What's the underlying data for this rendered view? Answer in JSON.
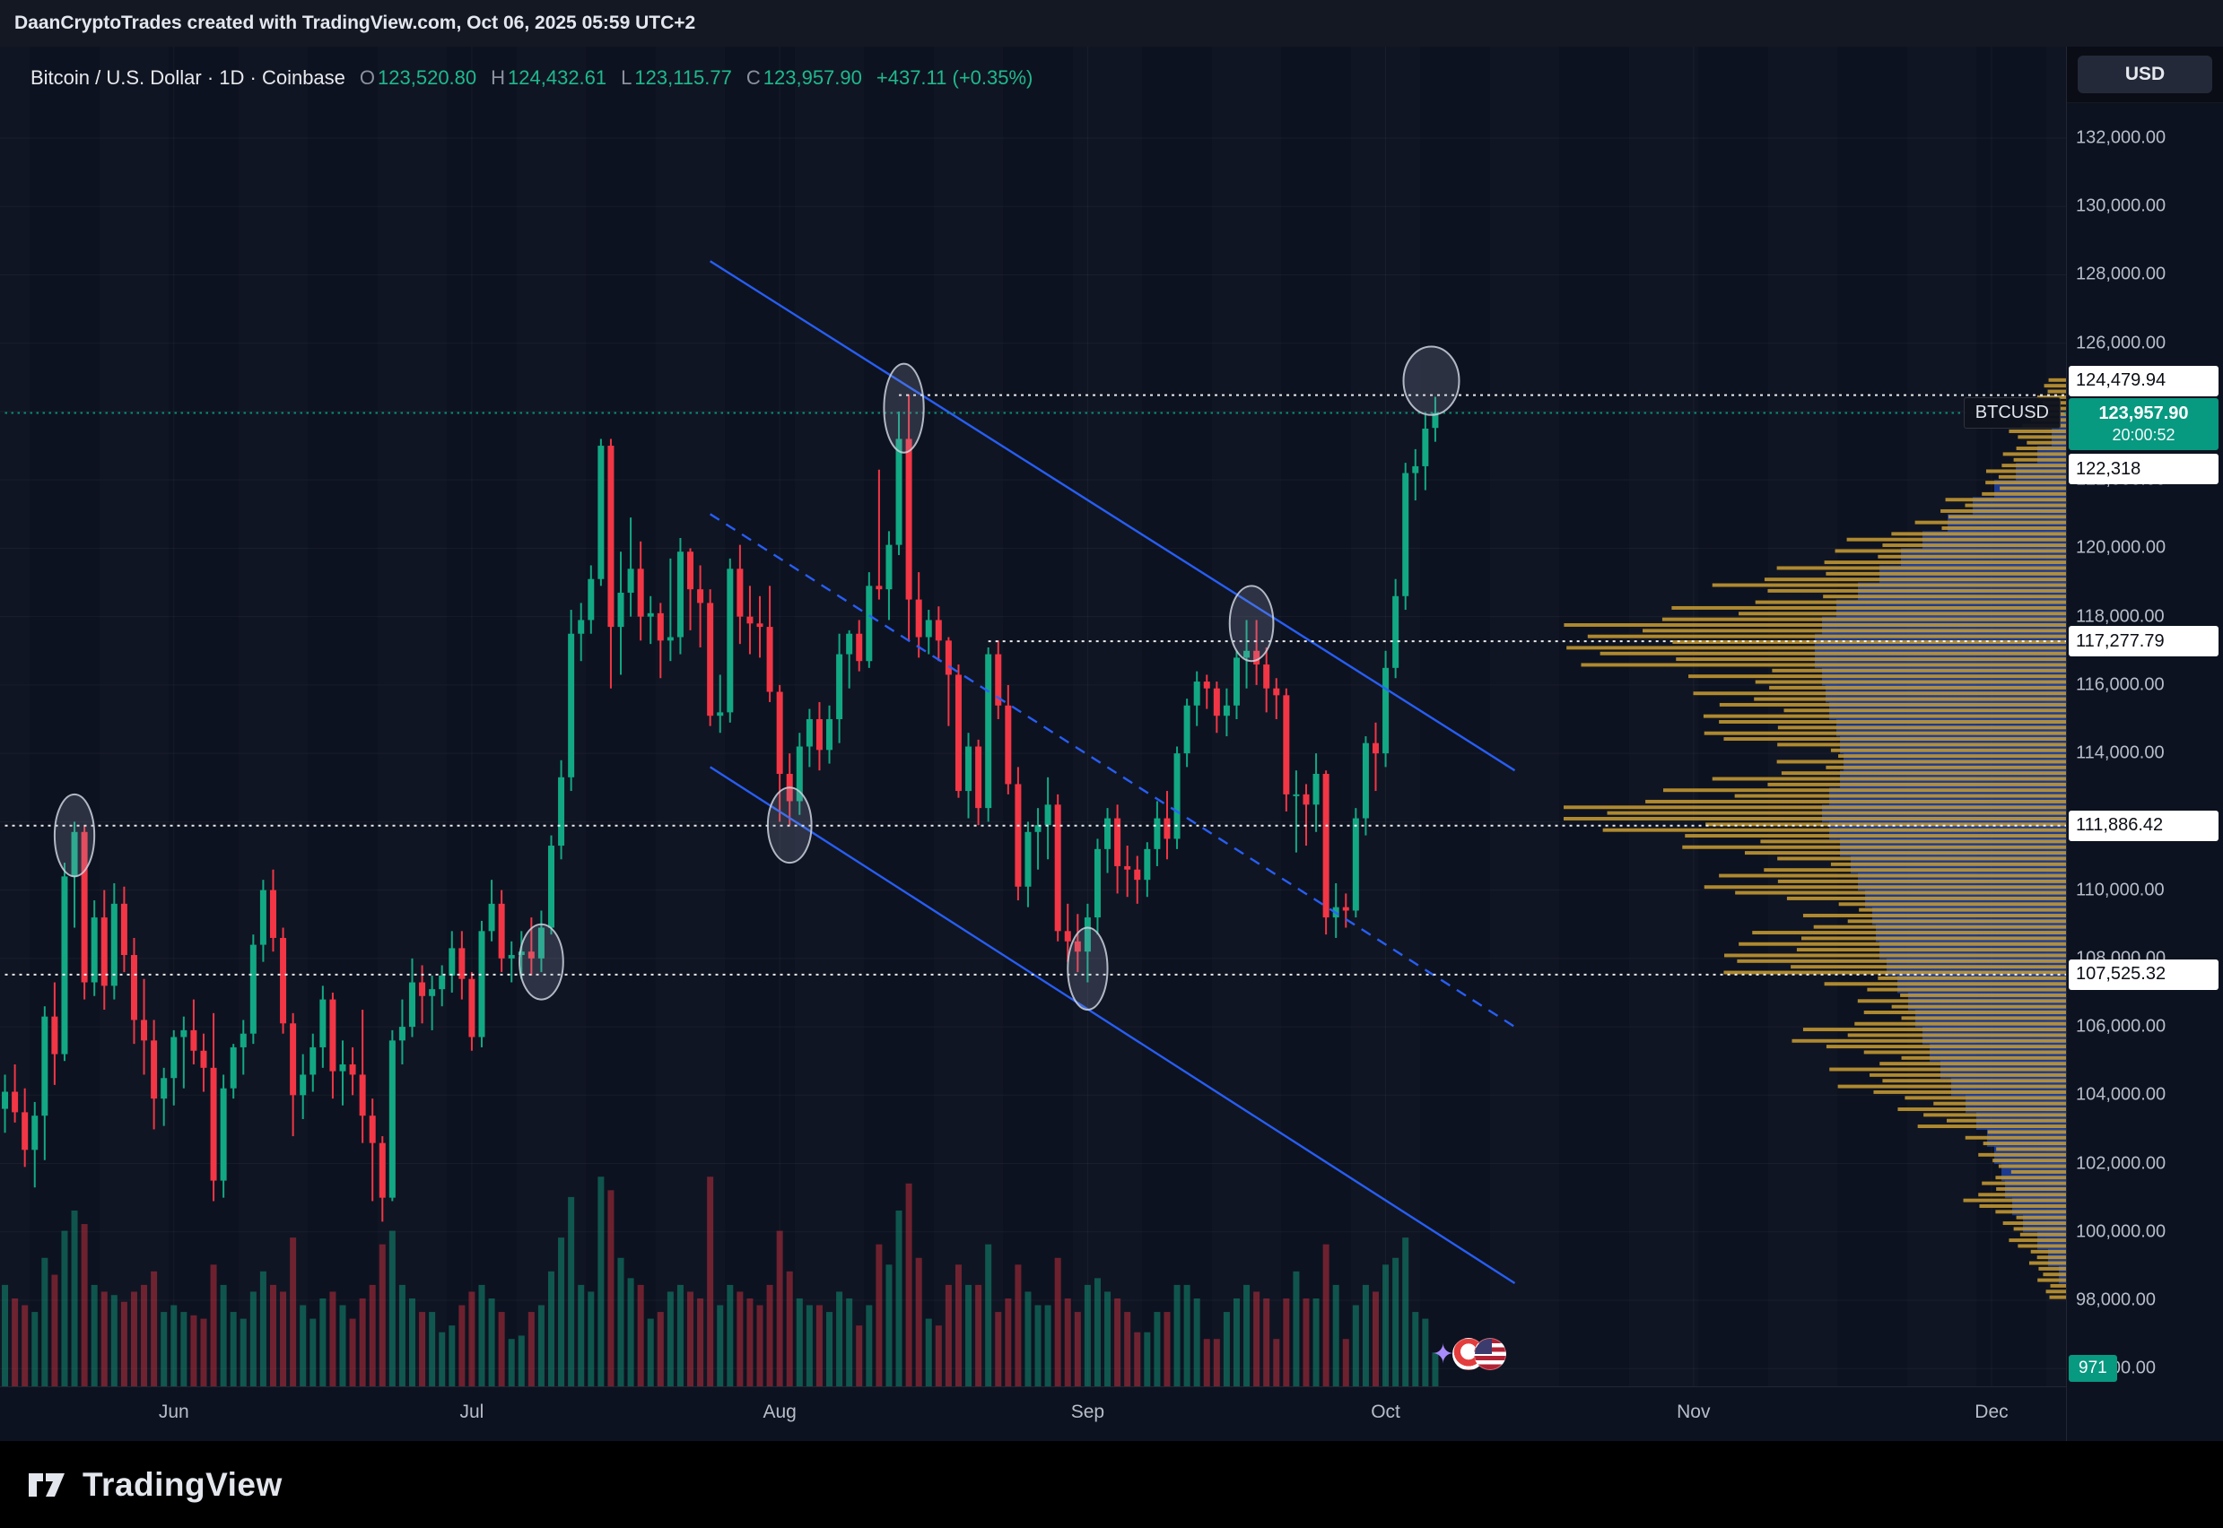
{
  "topbar": {
    "text": "DaanCryptoTrades created with TradingView.com, Oct 06, 2025 05:59 UTC+2"
  },
  "legend": {
    "title": "Bitcoin / U.S. Dollar · 1D · Coinbase",
    "ohlc": [
      {
        "label": "O",
        "value": "123,520.80"
      },
      {
        "label": "H",
        "value": "124,432.61"
      },
      {
        "label": "L",
        "value": "123,115.77"
      },
      {
        "label": "C",
        "value": "123,957.90"
      }
    ],
    "change": "+437.11 (+0.35%)"
  },
  "price_axis": {
    "currency_button": "USD",
    "volume_badge": "971",
    "current": {
      "symbol": "BTCUSD",
      "price": "123,957.90",
      "countdown": "20:00:52"
    }
  },
  "time_axis": {
    "months": [
      {
        "label": "Jun",
        "i": 17
      },
      {
        "label": "Jul",
        "i": 47
      },
      {
        "label": "Aug",
        "i": 78
      },
      {
        "label": "Sep",
        "i": 109
      },
      {
        "label": "Oct",
        "i": 139
      },
      {
        "label": "Nov",
        "i": 170
      },
      {
        "label": "Dec",
        "i": 200
      }
    ]
  },
  "footer": {
    "brand": "TradingView"
  },
  "colors": {
    "up": "#12a884",
    "down": "#f23645",
    "vol_up": "rgba(18,168,132,0.45)",
    "vol_down": "rgba(242,54,69,0.42)",
    "channel_blue": "#2962ff",
    "profile_gold": "#c59a31",
    "profile_blue": "#2962ff",
    "current_badge": "#089981",
    "white_line": "#ffffff"
  },
  "chart_data": {
    "type": "candlestick",
    "title": "Bitcoin / U.S. Dollar",
    "exchange": "Coinbase",
    "interval": "1D",
    "quote": "USD",
    "start_date": "2025-05-15",
    "end_date": "2025-10-06",
    "price_unit": "USD thousands per candle value",
    "x_slots": 208,
    "y_domain": [
      95482,
      134676
    ],
    "y_ticks": [
      96000,
      98000,
      100000,
      102000,
      104000,
      106000,
      108000,
      110000,
      112000,
      114000,
      116000,
      118000,
      120000,
      122000,
      124000,
      126000,
      128000,
      130000,
      132000
    ],
    "candles": [
      [
        103.6,
        104.6,
        102.9,
        104.1,
        0.3
      ],
      [
        104.1,
        104.9,
        103.2,
        103.5,
        0.26
      ],
      [
        103.5,
        104.2,
        101.9,
        102.4,
        0.24
      ],
      [
        102.4,
        103.8,
        101.3,
        103.4,
        0.22
      ],
      [
        103.4,
        106.6,
        102.1,
        106.3,
        0.38
      ],
      [
        106.3,
        107.3,
        104.3,
        105.2,
        0.33
      ],
      [
        105.2,
        110.8,
        105.0,
        110.4,
        0.46
      ],
      [
        110.4,
        112.0,
        108.9,
        111.7,
        0.52
      ],
      [
        111.7,
        111.9,
        106.8,
        107.3,
        0.48
      ],
      [
        107.3,
        109.7,
        106.9,
        109.2,
        0.3
      ],
      [
        109.2,
        110.0,
        106.5,
        107.2,
        0.28
      ],
      [
        107.2,
        110.2,
        106.8,
        109.6,
        0.27
      ],
      [
        109.6,
        110.1,
        107.6,
        108.1,
        0.25
      ],
      [
        108.1,
        108.6,
        105.5,
        106.2,
        0.28
      ],
      [
        106.2,
        107.4,
        104.6,
        105.6,
        0.3
      ],
      [
        105.6,
        106.2,
        103.0,
        103.9,
        0.34
      ],
      [
        103.9,
        104.8,
        103.1,
        104.5,
        0.22
      ],
      [
        104.5,
        105.9,
        103.7,
        105.7,
        0.24
      ],
      [
        105.7,
        106.3,
        104.2,
        105.9,
        0.22
      ],
      [
        105.9,
        106.8,
        104.9,
        105.3,
        0.21
      ],
      [
        105.3,
        105.8,
        104.1,
        104.8,
        0.2
      ],
      [
        104.8,
        106.4,
        100.9,
        101.5,
        0.36
      ],
      [
        101.5,
        104.6,
        101.0,
        104.2,
        0.3
      ],
      [
        104.2,
        105.5,
        103.9,
        105.4,
        0.22
      ],
      [
        105.4,
        106.2,
        104.6,
        105.8,
        0.2
      ],
      [
        105.8,
        108.7,
        105.5,
        108.4,
        0.28
      ],
      [
        108.4,
        110.3,
        107.9,
        110.0,
        0.34
      ],
      [
        110.0,
        110.6,
        108.2,
        108.6,
        0.3
      ],
      [
        108.6,
        108.9,
        105.8,
        106.1,
        0.28
      ],
      [
        106.1,
        106.4,
        102.8,
        104.0,
        0.44
      ],
      [
        104.0,
        105.2,
        103.3,
        104.6,
        0.24
      ],
      [
        104.6,
        105.8,
        104.1,
        105.4,
        0.2
      ],
      [
        105.4,
        107.2,
        104.8,
        106.8,
        0.26
      ],
      [
        106.8,
        107.0,
        103.9,
        104.7,
        0.28
      ],
      [
        104.7,
        105.6,
        103.7,
        104.9,
        0.24
      ],
      [
        104.9,
        105.4,
        104.0,
        104.6,
        0.2
      ],
      [
        104.6,
        106.5,
        102.6,
        103.4,
        0.26
      ],
      [
        103.4,
        103.9,
        100.9,
        102.6,
        0.3
      ],
      [
        102.6,
        102.8,
        100.3,
        101.0,
        0.42
      ],
      [
        101.0,
        105.9,
        100.9,
        105.6,
        0.46
      ],
      [
        105.6,
        106.8,
        104.9,
        106.0,
        0.3
      ],
      [
        106.0,
        108.0,
        105.7,
        107.3,
        0.26
      ],
      [
        107.3,
        107.8,
        106.1,
        106.9,
        0.22
      ],
      [
        106.9,
        107.5,
        105.9,
        107.1,
        0.22
      ],
      [
        107.1,
        107.8,
        106.6,
        107.5,
        0.16
      ],
      [
        107.5,
        108.8,
        107.0,
        108.3,
        0.18
      ],
      [
        108.3,
        108.8,
        106.8,
        107.4,
        0.24
      ],
      [
        107.4,
        107.6,
        105.3,
        105.7,
        0.28
      ],
      [
        105.7,
        109.1,
        105.4,
        108.8,
        0.3
      ],
      [
        108.8,
        110.3,
        108.5,
        109.6,
        0.26
      ],
      [
        109.6,
        110.0,
        107.6,
        108.0,
        0.22
      ],
      [
        108.0,
        108.5,
        107.3,
        108.1,
        0.14
      ],
      [
        108.1,
        108.8,
        107.4,
        108.2,
        0.15
      ],
      [
        108.2,
        109.2,
        107.5,
        108.0,
        0.22
      ],
      [
        108.0,
        109.4,
        107.6,
        108.9,
        0.24
      ],
      [
        108.9,
        111.6,
        108.7,
        111.3,
        0.34
      ],
      [
        111.3,
        113.8,
        110.9,
        113.3,
        0.44
      ],
      [
        113.3,
        118.2,
        112.9,
        117.5,
        0.56
      ],
      [
        117.5,
        118.4,
        116.7,
        117.9,
        0.3
      ],
      [
        117.9,
        119.5,
        117.5,
        119.1,
        0.28
      ],
      [
        119.1,
        123.2,
        118.9,
        123.0,
        0.62
      ],
      [
        123.0,
        123.2,
        115.9,
        117.7,
        0.58
      ],
      [
        117.7,
        119.9,
        116.3,
        118.7,
        0.38
      ],
      [
        118.7,
        120.9,
        118.0,
        119.4,
        0.32
      ],
      [
        119.4,
        120.2,
        117.3,
        118.0,
        0.3
      ],
      [
        118.0,
        118.6,
        117.2,
        118.1,
        0.2
      ],
      [
        118.1,
        118.4,
        116.2,
        117.3,
        0.22
      ],
      [
        117.3,
        119.7,
        116.7,
        117.4,
        0.28
      ],
      [
        117.4,
        120.3,
        116.9,
        119.9,
        0.3
      ],
      [
        119.9,
        120.0,
        117.6,
        118.8,
        0.28
      ],
      [
        118.8,
        119.5,
        117.1,
        118.4,
        0.26
      ],
      [
        118.4,
        118.8,
        114.8,
        115.1,
        0.62
      ],
      [
        115.1,
        116.3,
        114.6,
        115.2,
        0.24
      ],
      [
        115.2,
        119.7,
        114.9,
        119.4,
        0.3
      ],
      [
        119.4,
        120.1,
        117.2,
        118.0,
        0.28
      ],
      [
        118.0,
        118.9,
        116.9,
        117.8,
        0.26
      ],
      [
        117.8,
        118.6,
        116.8,
        117.7,
        0.24
      ],
      [
        117.7,
        118.9,
        115.5,
        115.8,
        0.3
      ],
      [
        115.8,
        116.0,
        112.0,
        113.4,
        0.46
      ],
      [
        113.4,
        114.0,
        111.9,
        112.6,
        0.34
      ],
      [
        112.6,
        114.6,
        112.2,
        114.2,
        0.26
      ],
      [
        114.2,
        115.3,
        113.6,
        115.0,
        0.24
      ],
      [
        115.0,
        115.5,
        113.5,
        114.1,
        0.24
      ],
      [
        114.1,
        115.4,
        113.7,
        115.0,
        0.22
      ],
      [
        115.0,
        117.5,
        114.3,
        116.9,
        0.28
      ],
      [
        116.9,
        117.6,
        115.9,
        117.5,
        0.26
      ],
      [
        117.5,
        117.9,
        116.4,
        116.7,
        0.18
      ],
      [
        116.7,
        119.3,
        116.5,
        118.9,
        0.24
      ],
      [
        118.9,
        122.3,
        118.5,
        118.8,
        0.42
      ],
      [
        118.8,
        120.5,
        117.9,
        120.1,
        0.36
      ],
      [
        120.1,
        124.0,
        119.8,
        123.2,
        0.52
      ],
      [
        123.2,
        124.5,
        117.3,
        118.5,
        0.6
      ],
      [
        118.5,
        119.3,
        116.8,
        117.4,
        0.38
      ],
      [
        117.4,
        118.2,
        116.9,
        117.9,
        0.2
      ],
      [
        117.9,
        118.3,
        116.7,
        117.3,
        0.18
      ],
      [
        117.3,
        117.4,
        114.8,
        116.3,
        0.3
      ],
      [
        116.3,
        116.6,
        112.7,
        112.9,
        0.36
      ],
      [
        112.9,
        114.6,
        112.1,
        114.2,
        0.3
      ],
      [
        114.2,
        114.4,
        111.9,
        112.4,
        0.3
      ],
      [
        112.4,
        117.1,
        112.0,
        116.9,
        0.42
      ],
      [
        116.9,
        117.3,
        115.0,
        115.4,
        0.22
      ],
      [
        115.4,
        116.0,
        112.8,
        113.1,
        0.26
      ],
      [
        113.1,
        113.6,
        109.7,
        110.1,
        0.36
      ],
      [
        110.1,
        112.0,
        109.5,
        111.7,
        0.28
      ],
      [
        111.7,
        112.4,
        110.6,
        111.9,
        0.24
      ],
      [
        111.9,
        113.3,
        110.9,
        112.5,
        0.24
      ],
      [
        112.5,
        112.8,
        108.5,
        108.8,
        0.38
      ],
      [
        108.8,
        109.6,
        107.9,
        108.5,
        0.26
      ],
      [
        108.5,
        109.3,
        107.6,
        108.2,
        0.22
      ],
      [
        108.2,
        109.6,
        107.3,
        109.2,
        0.3
      ],
      [
        109.2,
        111.5,
        108.7,
        111.2,
        0.32
      ],
      [
        111.2,
        112.4,
        110.5,
        112.1,
        0.28
      ],
      [
        112.1,
        112.5,
        109.9,
        110.7,
        0.26
      ],
      [
        110.7,
        111.3,
        109.8,
        110.6,
        0.22
      ],
      [
        110.6,
        111.0,
        109.6,
        110.3,
        0.16
      ],
      [
        110.3,
        111.4,
        109.8,
        111.2,
        0.16
      ],
      [
        111.2,
        112.6,
        110.7,
        112.1,
        0.22
      ],
      [
        112.1,
        112.9,
        110.9,
        111.5,
        0.22
      ],
      [
        111.5,
        114.2,
        111.2,
        114.0,
        0.3
      ],
      [
        114.0,
        115.6,
        113.6,
        115.4,
        0.3
      ],
      [
        115.4,
        116.4,
        114.8,
        116.1,
        0.26
      ],
      [
        116.1,
        116.3,
        115.3,
        115.9,
        0.14
      ],
      [
        115.9,
        116.1,
        114.6,
        115.1,
        0.14
      ],
      [
        115.1,
        115.9,
        114.5,
        115.4,
        0.22
      ],
      [
        115.4,
        117.0,
        115.0,
        116.8,
        0.26
      ],
      [
        116.8,
        117.9,
        115.9,
        117.0,
        0.3
      ],
      [
        117.0,
        117.9,
        116.0,
        116.6,
        0.28
      ],
      [
        116.6,
        117.1,
        115.2,
        115.9,
        0.26
      ],
      [
        115.9,
        116.2,
        115.0,
        115.7,
        0.14
      ],
      [
        115.7,
        115.9,
        112.3,
        112.8,
        0.26
      ],
      [
        112.8,
        113.5,
        111.1,
        112.8,
        0.34
      ],
      [
        112.8,
        113.1,
        111.3,
        112.5,
        0.26
      ],
      [
        112.5,
        114.0,
        111.7,
        113.4,
        0.26
      ],
      [
        113.4,
        113.5,
        108.7,
        109.2,
        0.42
      ],
      [
        109.2,
        110.2,
        108.6,
        109.5,
        0.3
      ],
      [
        109.5,
        109.9,
        108.9,
        109.4,
        0.14
      ],
      [
        109.4,
        112.4,
        109.2,
        112.1,
        0.24
      ],
      [
        112.1,
        114.5,
        111.6,
        114.3,
        0.3
      ],
      [
        114.3,
        114.9,
        112.9,
        114.0,
        0.28
      ],
      [
        114.0,
        117.0,
        113.6,
        116.5,
        0.36
      ],
      [
        116.5,
        119.1,
        116.2,
        118.6,
        0.38
      ],
      [
        118.6,
        122.5,
        118.2,
        122.2,
        0.44
      ],
      [
        122.2,
        122.9,
        121.4,
        122.4,
        0.22
      ],
      [
        122.4,
        123.9,
        121.7,
        123.5,
        0.2
      ],
      [
        123.5208,
        124.43261,
        123.11577,
        123.9579,
        0.1
      ]
    ],
    "hlines": [
      {
        "price": 124479.94,
        "from_i": 90,
        "style": "dotted",
        "color": "#ffffff",
        "label": "124,479.94",
        "current": false
      },
      {
        "price": 123957.9,
        "from_i": 0,
        "style": "dotted",
        "color": "#089981",
        "label": "123,957.90",
        "current": true
      },
      {
        "price": 117277.79,
        "from_i": 99,
        "style": "dotted",
        "color": "#ffffff",
        "label": "117,277.79",
        "current": false
      },
      {
        "price": 111886.42,
        "from_i": 0,
        "style": "dotted",
        "color": "#ffffff",
        "label": "111,886.42",
        "current": false
      },
      {
        "price": 107525.32,
        "from_i": 0,
        "style": "dotted",
        "color": "#ffffff",
        "label": "107,525.32",
        "current": false
      }
    ],
    "axis_only_labels": [
      {
        "price": 122318,
        "label": "122,318"
      }
    ],
    "channel": {
      "color": "#2962ff",
      "lines": [
        {
          "i1": 71,
          "p1": 128.4,
          "i2": 152,
          "p2": 113.5,
          "dash": false
        },
        {
          "i1": 71,
          "p1": 121.0,
          "i2": 152,
          "p2": 106.0,
          "dash": true
        },
        {
          "i1": 71,
          "p1": 113.6,
          "i2": 152,
          "p2": 98.5,
          "dash": false
        }
      ]
    },
    "ellipses": [
      {
        "i": 7,
        "p": 111.6,
        "rx_i": 2.0,
        "ry_k": 1.2
      },
      {
        "i": 54,
        "p": 107.9,
        "rx_i": 2.2,
        "ry_k": 1.1
      },
      {
        "i": 79,
        "p": 111.9,
        "rx_i": 2.2,
        "ry_k": 1.1
      },
      {
        "i": 90.5,
        "p": 124.1,
        "rx_i": 2.0,
        "ry_k": 1.3
      },
      {
        "i": 109,
        "p": 107.7,
        "rx_i": 2.0,
        "ry_k": 1.2
      },
      {
        "i": 125.5,
        "p": 117.8,
        "rx_i": 2.2,
        "ry_k": 1.1
      },
      {
        "i": 143.6,
        "p": 124.9,
        "rx_i": 2.8,
        "ry_k": 1.0
      }
    ],
    "volume_profile": {
      "price_min": 98,
      "bucket": 0.5,
      "gold": [
        0.04,
        0.05,
        0.07,
        0.1,
        0.12,
        0.18,
        0.16,
        0.14,
        0.16,
        0.2,
        0.26,
        0.32,
        0.4,
        0.45,
        0.42,
        0.5,
        0.42,
        0.38,
        0.48,
        0.6,
        0.65,
        0.55,
        0.5,
        0.58,
        0.66,
        0.6,
        0.7,
        0.92,
        1.0,
        0.8,
        0.62,
        0.55,
        0.6,
        0.66,
        0.72,
        0.68,
        0.75,
        0.85,
        0.95,
        0.88,
        0.75,
        0.62,
        0.55,
        0.48,
        0.4,
        0.3,
        0.22,
        0.16,
        0.14,
        0.12,
        0.1,
        0.08,
        0.06,
        0.04
      ],
      "blue": [
        0.0,
        0.02,
        0.05,
        0.08,
        0.12,
        0.15,
        0.17,
        0.18,
        0.2,
        0.22,
        0.25,
        0.28,
        0.32,
        0.35,
        0.38,
        0.4,
        0.42,
        0.44,
        0.47,
        0.5,
        0.52,
        0.53,
        0.54,
        0.56,
        0.58,
        0.6,
        0.63,
        0.66,
        0.68,
        0.66,
        0.63,
        0.62,
        0.63,
        0.64,
        0.66,
        0.67,
        0.68,
        0.7,
        0.7,
        0.68,
        0.64,
        0.58,
        0.52,
        0.46,
        0.4,
        0.33,
        0.26,
        0.2,
        0.14,
        0.08,
        0.04,
        0.02,
        0.0,
        0.0
      ]
    }
  }
}
